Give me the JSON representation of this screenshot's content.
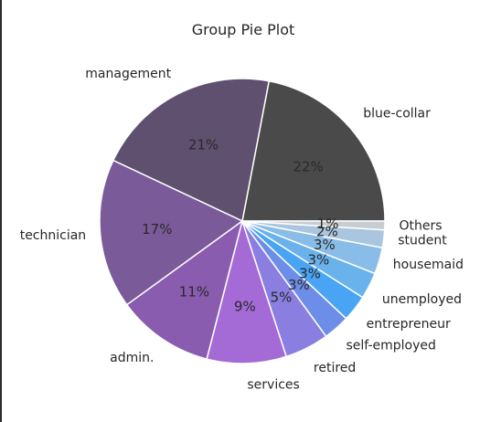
{
  "chart_data": {
    "type": "pie",
    "title": "Group Pie Plot",
    "categories": [
      "blue-collar",
      "management",
      "technician",
      "admin.",
      "services",
      "retired",
      "self-employed",
      "entrepreneur",
      "unemployed",
      "housemaid",
      "student",
      "Others"
    ],
    "values": [
      22,
      21,
      17,
      11,
      9,
      5,
      3,
      3,
      3,
      3,
      2,
      1
    ],
    "value_labels": [
      "22%",
      "21%",
      "17%",
      "11%",
      "9%",
      "5%",
      "3%",
      "3%",
      "3%",
      "3%",
      "2%",
      "1%"
    ],
    "colors": [
      "#4a4a4a",
      "#5f5070",
      "#7a5a98",
      "#8a5cb0",
      "#a46ad6",
      "#8a7ee0",
      "#6d8ee8",
      "#49a4f4",
      "#6ab2ec",
      "#89bce6",
      "#aac6de",
      "#c8cdd2"
    ],
    "start_angle_deg": 0,
    "direction": "counterclockwise",
    "legend": "none"
  }
}
